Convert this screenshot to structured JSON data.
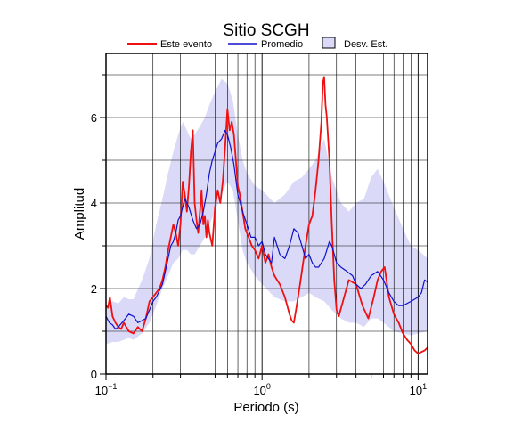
{
  "chart_data": {
    "type": "line",
    "title": "Sitio SCGH",
    "xlabel": "Periodo (s)",
    "ylabel": "Amplitud",
    "x_scale": "log",
    "xlim": [
      0.1,
      11.5
    ],
    "ylim": [
      0,
      7.5
    ],
    "grid": true,
    "legend_position": "top",
    "x_ticks": [
      {
        "value": 0.1,
        "base": "10",
        "exp": "−1"
      },
      {
        "value": 1,
        "base": "10",
        "exp": "0"
      },
      {
        "value": 10,
        "base": "10",
        "exp": "1"
      }
    ],
    "y_ticks": [
      0,
      2,
      4,
      6
    ],
    "legend": {
      "event_label": "Este evento",
      "mean_label": "Promedio",
      "std_label": "Desv. Est."
    },
    "colors": {
      "event": "#ee1111",
      "mean": "#1111cc",
      "std_fill": "#dadaf8",
      "grid": "#000000"
    },
    "band": {
      "x": [
        0.1,
        0.11,
        0.12,
        0.13,
        0.14,
        0.15,
        0.17,
        0.19,
        0.21,
        0.23,
        0.25,
        0.27,
        0.29,
        0.31,
        0.33,
        0.35,
        0.37,
        0.4,
        0.43,
        0.46,
        0.5,
        0.55,
        0.6,
        0.65,
        0.7,
        0.75,
        0.8,
        0.9,
        1.0,
        1.2,
        1.4,
        1.6,
        1.8,
        2.0,
        2.2,
        2.5,
        2.8,
        3.2,
        3.6,
        4.0,
        4.5,
        5.0,
        5.5,
        6.0,
        7.0,
        8.0,
        9.0,
        10.0,
        11.5
      ],
      "upper": [
        1.6,
        1.7,
        1.65,
        1.8,
        1.75,
        1.75,
        2.2,
        2.7,
        3.5,
        4.1,
        4.7,
        5.2,
        5.6,
        5.9,
        5.7,
        5.5,
        5.6,
        5.8,
        6.0,
        6.3,
        6.6,
        6.9,
        6.8,
        6.4,
        5.6,
        5.0,
        4.7,
        4.4,
        4.3,
        4.0,
        4.2,
        4.5,
        4.6,
        4.8,
        5.0,
        5.5,
        4.6,
        4.0,
        3.8,
        4.0,
        4.1,
        4.6,
        4.8,
        4.5,
        3.9,
        3.4,
        3.0,
        2.9,
        2.7
      ],
      "lower": [
        0.7,
        0.75,
        0.75,
        0.8,
        0.85,
        0.8,
        0.95,
        1.2,
        1.6,
        2.0,
        2.3,
        2.6,
        2.7,
        2.9,
        2.9,
        2.8,
        2.8,
        3.0,
        3.2,
        3.5,
        3.8,
        4.2,
        4.5,
        4.3,
        3.6,
        2.9,
        2.6,
        2.3,
        2.1,
        1.8,
        1.7,
        1.7,
        1.8,
        1.9,
        1.8,
        1.7,
        1.5,
        1.3,
        1.2,
        1.2,
        1.1,
        1.3,
        1.3,
        1.2,
        1.0,
        0.95,
        0.9,
        0.95,
        1.0
      ]
    },
    "series": [
      {
        "name": "Este evento",
        "x": [
          0.1,
          0.103,
          0.106,
          0.11,
          0.115,
          0.12,
          0.125,
          0.13,
          0.14,
          0.15,
          0.16,
          0.17,
          0.18,
          0.19,
          0.2,
          0.21,
          0.22,
          0.23,
          0.24,
          0.25,
          0.26,
          0.27,
          0.28,
          0.29,
          0.3,
          0.31,
          0.32,
          0.33,
          0.34,
          0.35,
          0.36,
          0.37,
          0.38,
          0.39,
          0.4,
          0.41,
          0.42,
          0.43,
          0.44,
          0.45,
          0.46,
          0.48,
          0.5,
          0.52,
          0.54,
          0.56,
          0.58,
          0.6,
          0.62,
          0.64,
          0.66,
          0.68,
          0.7,
          0.72,
          0.75,
          0.78,
          0.82,
          0.86,
          0.9,
          0.95,
          1.0,
          1.05,
          1.1,
          1.15,
          1.2,
          1.3,
          1.4,
          1.5,
          1.55,
          1.6,
          1.65,
          1.7,
          1.75,
          1.8,
          1.9,
          2.0,
          2.1,
          2.2,
          2.3,
          2.4,
          2.45,
          2.5,
          2.55,
          2.6,
          2.7,
          2.8,
          2.9,
          3.0,
          3.1,
          3.3,
          3.6,
          4.0,
          4.4,
          4.8,
          5.2,
          5.5,
          5.8,
          6.1,
          6.5,
          7.0,
          7.5,
          8.0,
          8.5,
          9.0,
          9.5,
          10.0,
          11.0,
          11.5
        ],
        "values": [
          1.6,
          1.55,
          1.8,
          1.35,
          1.2,
          1.1,
          1.05,
          1.2,
          1.0,
          0.95,
          1.1,
          1.0,
          1.3,
          1.7,
          1.8,
          1.9,
          2.0,
          2.2,
          2.5,
          2.9,
          3.2,
          3.5,
          3.3,
          3.0,
          3.5,
          4.5,
          4.2,
          3.8,
          4.4,
          5.2,
          5.7,
          4.0,
          3.6,
          3.3,
          3.8,
          4.3,
          3.5,
          3.7,
          3.2,
          3.6,
          3.3,
          3.0,
          3.9,
          4.3,
          4.0,
          4.5,
          5.3,
          6.2,
          5.7,
          5.9,
          5.6,
          5.0,
          4.4,
          4.2,
          3.8,
          3.4,
          3.2,
          3.0,
          2.9,
          2.7,
          3.0,
          2.6,
          2.8,
          2.5,
          2.3,
          2.1,
          1.8,
          1.4,
          1.25,
          1.2,
          1.5,
          1.8,
          2.1,
          2.4,
          3.0,
          3.5,
          3.7,
          4.3,
          5.0,
          5.9,
          6.8,
          6.95,
          6.3,
          6.0,
          5.0,
          3.5,
          2.2,
          1.5,
          1.35,
          1.7,
          2.2,
          2.1,
          1.6,
          1.3,
          1.8,
          2.2,
          2.4,
          2.5,
          1.8,
          1.4,
          1.2,
          0.95,
          0.8,
          0.7,
          0.55,
          0.48,
          0.55,
          0.62
        ]
      },
      {
        "name": "Promedio",
        "x": [
          0.1,
          0.105,
          0.11,
          0.115,
          0.12,
          0.13,
          0.14,
          0.15,
          0.16,
          0.17,
          0.18,
          0.19,
          0.2,
          0.21,
          0.22,
          0.23,
          0.24,
          0.25,
          0.26,
          0.27,
          0.28,
          0.29,
          0.3,
          0.32,
          0.34,
          0.36,
          0.38,
          0.4,
          0.42,
          0.44,
          0.46,
          0.48,
          0.5,
          0.52,
          0.55,
          0.58,
          0.6,
          0.63,
          0.66,
          0.7,
          0.75,
          0.8,
          0.85,
          0.9,
          0.95,
          1.0,
          1.05,
          1.1,
          1.15,
          1.2,
          1.3,
          1.4,
          1.5,
          1.6,
          1.7,
          1.8,
          1.9,
          2.0,
          2.1,
          2.2,
          2.3,
          2.4,
          2.5,
          2.6,
          2.7,
          2.8,
          2.9,
          3.0,
          3.2,
          3.5,
          3.8,
          4.0,
          4.3,
          4.6,
          5.0,
          5.5,
          6.0,
          6.5,
          7.0,
          7.5,
          8.0,
          9.0,
          10.0,
          10.5,
          11.0,
          11.5
        ],
        "values": [
          1.35,
          1.2,
          1.15,
          1.05,
          1.1,
          1.25,
          1.4,
          1.35,
          1.2,
          1.25,
          1.3,
          1.5,
          1.7,
          1.8,
          1.95,
          2.1,
          2.4,
          2.7,
          3.0,
          3.1,
          3.3,
          3.6,
          3.7,
          4.1,
          3.9,
          3.6,
          3.4,
          3.5,
          3.8,
          4.2,
          4.7,
          5.0,
          5.2,
          5.4,
          5.5,
          5.7,
          5.6,
          5.3,
          4.9,
          4.2,
          3.8,
          3.5,
          3.2,
          3.2,
          3.0,
          3.1,
          2.8,
          2.7,
          2.6,
          3.2,
          2.8,
          2.7,
          3.0,
          3.4,
          3.3,
          3.0,
          2.7,
          2.8,
          2.6,
          2.5,
          2.5,
          2.6,
          2.7,
          2.9,
          3.1,
          3.0,
          2.8,
          2.6,
          2.5,
          2.4,
          2.3,
          2.1,
          2.0,
          2.1,
          2.3,
          2.4,
          2.2,
          1.9,
          1.7,
          1.6,
          1.6,
          1.7,
          1.8,
          1.9,
          2.2,
          2.15
        ]
      }
    ]
  }
}
